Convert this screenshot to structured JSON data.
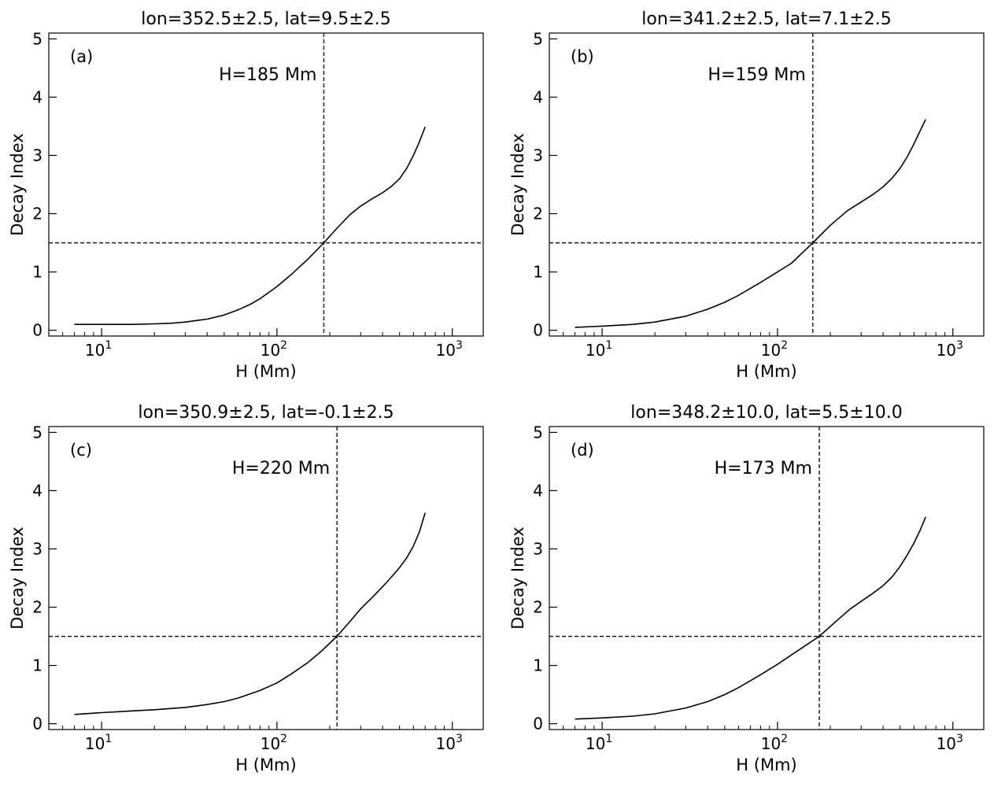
{
  "figure": {
    "background": "#ffffff"
  },
  "chart_data": [
    {
      "type": "line",
      "panel_label": "(a)",
      "title": "lon=352.5±2.5, lat=9.5±2.5",
      "xlabel": "H (Mm)",
      "ylabel": "Decay Index",
      "xscale": "log",
      "xlim": [
        5,
        1500
      ],
      "ylim": [
        -0.1,
        5.1
      ],
      "x_ticks": [
        {
          "value": 10,
          "base": "10",
          "exp": "1"
        },
        {
          "value": 100,
          "base": "10",
          "exp": "2"
        },
        {
          "value": 1000,
          "base": "10",
          "exp": "3"
        }
      ],
      "y_ticks": [
        "0",
        "1",
        "2",
        "3",
        "4",
        "5"
      ],
      "critical_height": 185,
      "critical_index": 1.5,
      "annotation": "H=185 Mm",
      "line_color": "#000000",
      "series": [
        {
          "name": "Decay Index",
          "x": [
            7,
            10,
            15,
            20,
            25,
            30,
            40,
            50,
            60,
            70,
            80,
            100,
            120,
            150,
            185,
            220,
            260,
            300,
            350,
            400,
            450,
            500,
            550,
            600,
            650,
            700
          ],
          "y": [
            0.1,
            0.1,
            0.1,
            0.11,
            0.12,
            0.14,
            0.19,
            0.26,
            0.35,
            0.44,
            0.54,
            0.75,
            0.95,
            1.22,
            1.5,
            1.75,
            1.98,
            2.13,
            2.26,
            2.36,
            2.47,
            2.6,
            2.78,
            3.0,
            3.24,
            3.49
          ]
        }
      ]
    },
    {
      "type": "line",
      "panel_label": "(b)",
      "title": "lon=341.2±2.5, lat=7.1±2.5",
      "xlabel": "H (Mm)",
      "ylabel": "Decay Index",
      "xscale": "log",
      "xlim": [
        5,
        1500
      ],
      "ylim": [
        -0.1,
        5.1
      ],
      "x_ticks": [
        {
          "value": 10,
          "base": "10",
          "exp": "1"
        },
        {
          "value": 100,
          "base": "10",
          "exp": "2"
        },
        {
          "value": 1000,
          "base": "10",
          "exp": "3"
        }
      ],
      "y_ticks": [
        "0",
        "1",
        "2",
        "3",
        "4",
        "5"
      ],
      "critical_height": 159,
      "critical_index": 1.5,
      "annotation": "H=159 Mm",
      "line_color": "#000000",
      "series": [
        {
          "name": "Decay Index",
          "x": [
            7,
            10,
            15,
            20,
            30,
            40,
            50,
            60,
            80,
            100,
            120,
            159,
            200,
            250,
            300,
            350,
            400,
            450,
            500,
            550,
            600,
            650,
            700
          ],
          "y": [
            0.05,
            0.07,
            0.1,
            0.14,
            0.24,
            0.36,
            0.48,
            0.6,
            0.82,
            1.0,
            1.15,
            1.5,
            1.8,
            2.05,
            2.2,
            2.33,
            2.46,
            2.61,
            2.78,
            2.98,
            3.2,
            3.42,
            3.62
          ]
        }
      ]
    },
    {
      "type": "line",
      "panel_label": "(c)",
      "title": "lon=350.9±2.5, lat=-0.1±2.5",
      "xlabel": "H (Mm)",
      "ylabel": "Decay Index",
      "xscale": "log",
      "xlim": [
        5,
        1500
      ],
      "ylim": [
        -0.1,
        5.1
      ],
      "x_ticks": [
        {
          "value": 10,
          "base": "10",
          "exp": "1"
        },
        {
          "value": 100,
          "base": "10",
          "exp": "2"
        },
        {
          "value": 1000,
          "base": "10",
          "exp": "3"
        }
      ],
      "y_ticks": [
        "0",
        "1",
        "2",
        "3",
        "4",
        "5"
      ],
      "critical_height": 220,
      "critical_index": 1.5,
      "annotation": "H=220 Mm",
      "line_color": "#000000",
      "series": [
        {
          "name": "Decay Index",
          "x": [
            7,
            10,
            15,
            20,
            30,
            40,
            50,
            60,
            80,
            100,
            120,
            150,
            180,
            220,
            260,
            300,
            350,
            400,
            450,
            500,
            550,
            600,
            650,
            700
          ],
          "y": [
            0.16,
            0.19,
            0.22,
            0.24,
            0.28,
            0.33,
            0.38,
            0.44,
            0.57,
            0.7,
            0.85,
            1.05,
            1.25,
            1.5,
            1.75,
            1.97,
            2.17,
            2.35,
            2.52,
            2.68,
            2.85,
            3.05,
            3.3,
            3.62
          ]
        }
      ]
    },
    {
      "type": "line",
      "panel_label": "(d)",
      "title": "lon=348.2±10.0, lat=5.5±10.0",
      "xlabel": "H (Mm)",
      "ylabel": "Decay Index",
      "xscale": "log",
      "xlim": [
        5,
        1500
      ],
      "ylim": [
        -0.1,
        5.1
      ],
      "x_ticks": [
        {
          "value": 10,
          "base": "10",
          "exp": "1"
        },
        {
          "value": 100,
          "base": "10",
          "exp": "2"
        },
        {
          "value": 1000,
          "base": "10",
          "exp": "3"
        }
      ],
      "y_ticks": [
        "0",
        "1",
        "2",
        "3",
        "4",
        "5"
      ],
      "critical_height": 173,
      "critical_index": 1.5,
      "annotation": "H=173 Mm",
      "line_color": "#000000",
      "series": [
        {
          "name": "Decay Index",
          "x": [
            7,
            10,
            15,
            20,
            30,
            40,
            50,
            60,
            80,
            100,
            120,
            173,
            220,
            260,
            300,
            350,
            400,
            450,
            500,
            550,
            600,
            650,
            700
          ],
          "y": [
            0.08,
            0.1,
            0.13,
            0.17,
            0.27,
            0.38,
            0.5,
            0.62,
            0.84,
            1.02,
            1.18,
            1.5,
            1.78,
            1.97,
            2.1,
            2.24,
            2.37,
            2.52,
            2.7,
            2.9,
            3.1,
            3.32,
            3.55
          ]
        }
      ]
    }
  ]
}
